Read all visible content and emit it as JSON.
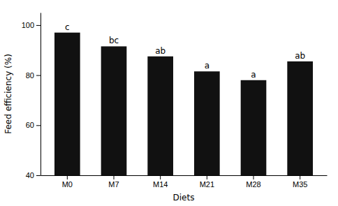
{
  "chart_data": {
    "type": "bar",
    "xlabel": "Diets",
    "ylabel": "Feed efficiency (%)",
    "categories": [
      "M0",
      "M7",
      "M14",
      "M21",
      "M28",
      "M35"
    ],
    "values": [
      97.0,
      91.5,
      87.5,
      81.5,
      78.0,
      85.5
    ],
    "annotations": [
      "c",
      "bc",
      "ab",
      "a",
      "a",
      "ab"
    ],
    "color": "#111111",
    "ylim": [
      40,
      105
    ],
    "yticks": [
      40,
      60,
      80,
      100
    ],
    "grid": false
  }
}
